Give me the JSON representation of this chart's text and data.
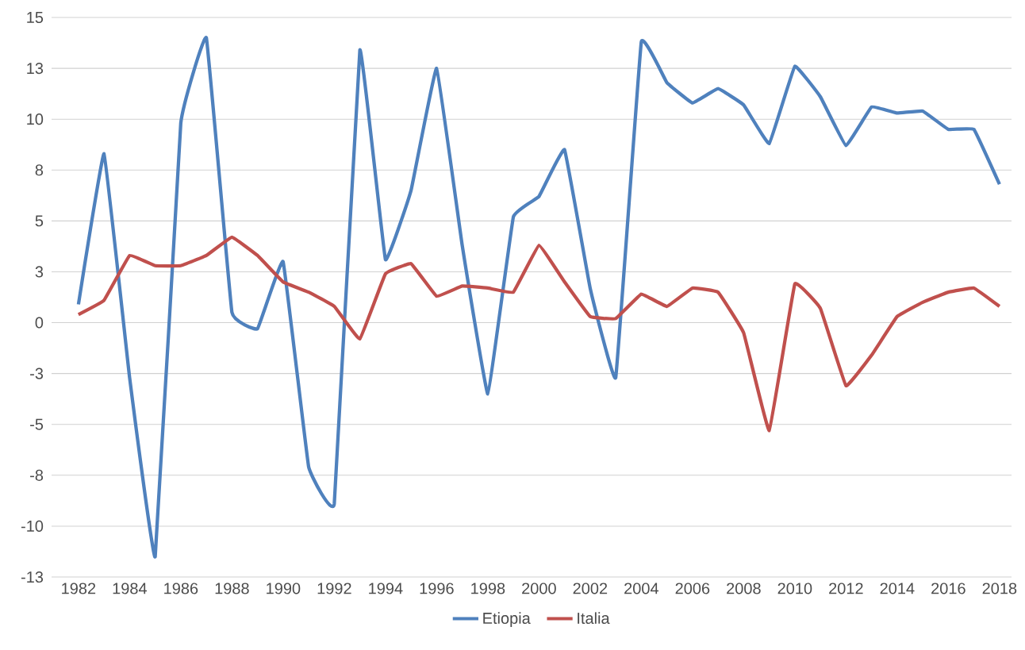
{
  "chart_data": {
    "type": "line",
    "categories": [
      "1982",
      null,
      "1984",
      null,
      "1986",
      null,
      "1988",
      null,
      "1990",
      null,
      "1992",
      null,
      "1994",
      null,
      "1996",
      null,
      "1998",
      null,
      "2000",
      null,
      "2002",
      null,
      "2004",
      null,
      "2006",
      null,
      "2008",
      null,
      "2010",
      null,
      "2012",
      null,
      "2014",
      null,
      "2016",
      null,
      "2018"
    ],
    "series": [
      {
        "name": "Etiopia",
        "color": "#4f81bd",
        "values": [
          0.9,
          8.3,
          -2.7,
          -11.5,
          9.8,
          14.0,
          0.5,
          -0.3,
          3.0,
          -7.1,
          -8.9,
          13.4,
          3.1,
          6.5,
          12.5,
          3.8,
          -3.5,
          5.2,
          6.2,
          8.5,
          1.7,
          -2.7,
          13.8,
          11.8,
          10.8,
          11.5,
          10.7,
          8.8,
          12.6,
          11.1,
          8.7,
          10.6,
          10.3,
          10.4,
          9.5,
          9.5,
          6.8
        ]
      },
      {
        "name": "Italia",
        "color": "#c0504d",
        "values": [
          0.4,
          1.1,
          3.3,
          2.8,
          2.8,
          3.3,
          4.2,
          3.3,
          2.0,
          1.5,
          0.8,
          -0.8,
          2.4,
          2.9,
          1.3,
          1.8,
          1.7,
          1.5,
          3.8,
          2.0,
          0.3,
          0.2,
          1.4,
          0.8,
          1.7,
          1.5,
          -0.5,
          -5.3,
          1.9,
          0.7,
          -3.1,
          -1.6,
          0.3,
          1.0,
          1.5,
          1.7,
          0.8
        ]
      }
    ],
    "ylim": [
      -12.5,
      15
    ],
    "yticks": [
      15,
      {
        "value": 12.5,
        "label": "13"
      },
      10,
      {
        "value": 7.5,
        "label": "8"
      },
      5,
      {
        "value": 2.5,
        "label": "3"
      },
      0,
      {
        "value": -2.5,
        "label": "-3"
      },
      -5,
      {
        "value": -7.5,
        "label": "-8"
      },
      -10,
      {
        "value": -12.5,
        "label": "-13"
      }
    ],
    "grid": "y",
    "legend": "bottom",
    "marker": "none",
    "line_style": "solid"
  }
}
